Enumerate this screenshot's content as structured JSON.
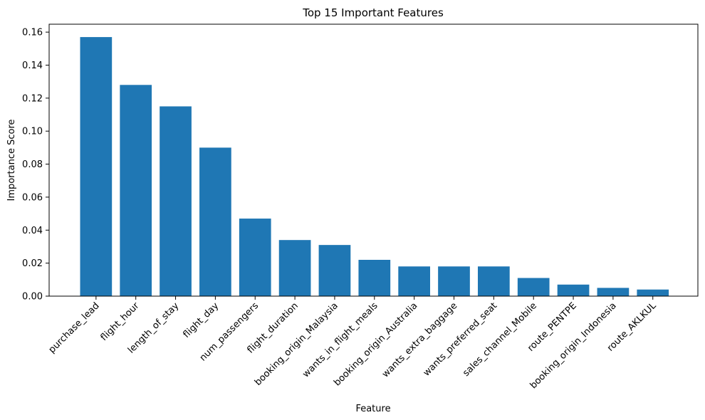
{
  "chart_data": {
    "type": "bar",
    "title": "Top 15 Important Features",
    "xlabel": "Feature",
    "ylabel": "Importance Score",
    "categories": [
      "purchase_lead",
      "flight_hour",
      "length_of_stay",
      "flight_day",
      "num_passengers",
      "flight_duration",
      "booking_origin_Malaysia",
      "wants_in_flight_meals",
      "booking_origin_Australia",
      "wants_extra_baggage",
      "wants_preferred_seat",
      "sales_channel_Mobile",
      "route_PENTPE",
      "booking_origin_Indonesia",
      "route_AKLKUL"
    ],
    "values": [
      0.157,
      0.128,
      0.115,
      0.09,
      0.047,
      0.034,
      0.031,
      0.022,
      0.018,
      0.018,
      0.018,
      0.011,
      0.007,
      0.005,
      0.004
    ],
    "ylim": [
      0,
      0.1648
    ],
    "yticks": [
      0.0,
      0.02,
      0.04,
      0.06,
      0.08,
      0.1,
      0.12,
      0.14,
      0.16
    ],
    "ytick_labels": [
      "0.00",
      "0.02",
      "0.04",
      "0.06",
      "0.08",
      "0.10",
      "0.12",
      "0.14",
      "0.16"
    ],
    "bar_color": "#1f77b4",
    "grid": false,
    "legend": false
  }
}
